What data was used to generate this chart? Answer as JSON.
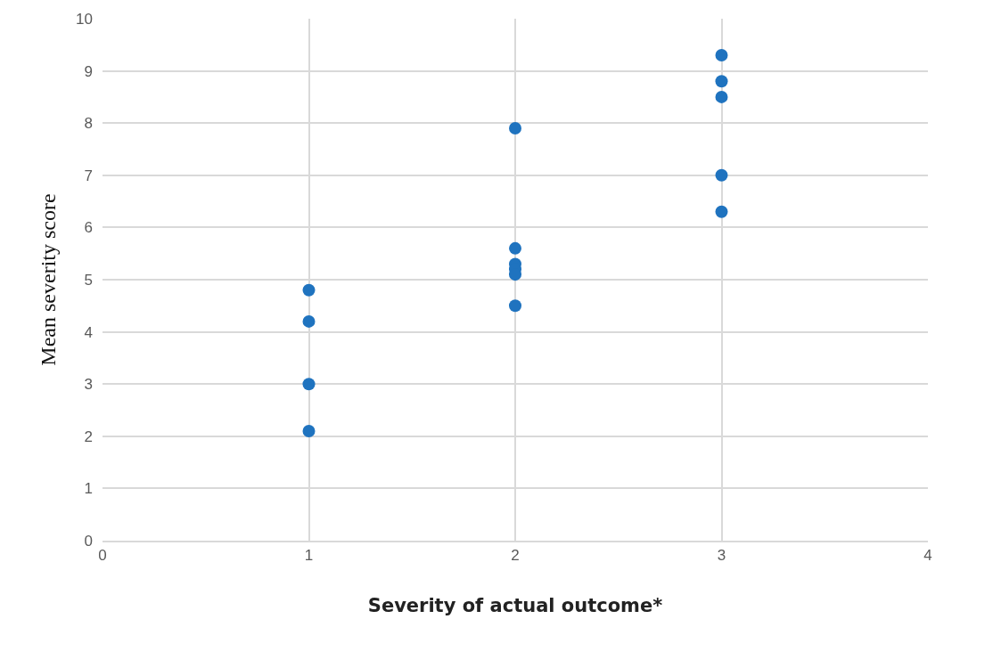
{
  "chart_data": {
    "type": "scatter",
    "xlabel": "Severity of actual outcome*",
    "ylabel": "Mean severity score",
    "x": [
      1,
      1,
      1,
      1,
      2,
      2,
      2,
      2,
      2,
      2,
      3,
      3,
      3,
      3,
      3
    ],
    "values": [
      4.8,
      4.2,
      3.0,
      2.1,
      7.9,
      5.6,
      5.3,
      5.2,
      5.1,
      4.5,
      9.3,
      8.8,
      8.5,
      7.0,
      6.3
    ],
    "color": "#1f73bf",
    "marker": "circle",
    "xlim": [
      0,
      4
    ],
    "xticks": [
      0,
      1,
      2,
      3,
      4
    ],
    "ylim": [
      0,
      10
    ],
    "yticks": [
      0,
      1,
      2,
      3,
      4,
      5,
      6,
      7,
      8,
      9,
      10
    ],
    "grid": true,
    "legend": false
  }
}
